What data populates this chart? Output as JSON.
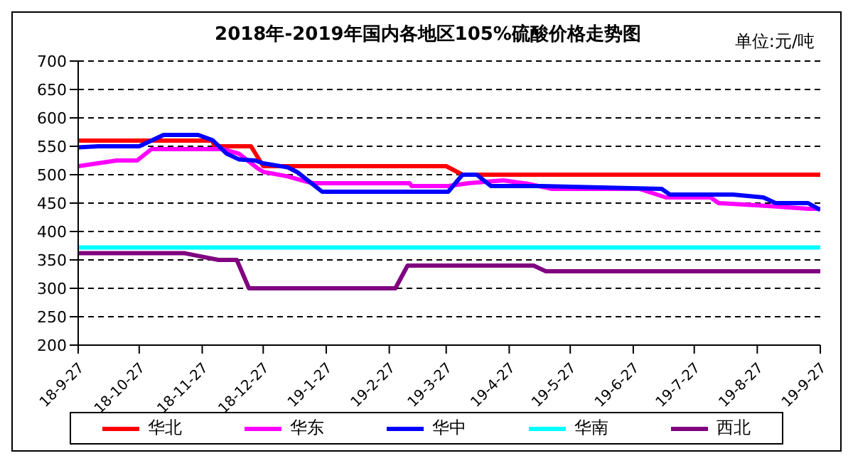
{
  "chart_data": {
    "type": "line",
    "title": "2018年-2019年国内各地区105%硫酸价格走势图",
    "annotations": [
      "单位:元/吨"
    ],
    "xlim": [
      "2018-09-27",
      "2019-09-27"
    ],
    "xticks": [
      {
        "value": "2018-09-27",
        "label": "18-9-27"
      },
      {
        "value": "2018-10-27",
        "label": "18-10-27"
      },
      {
        "value": "2018-11-27",
        "label": "18-11-27"
      },
      {
        "value": "2018-12-27",
        "label": "18-12-27"
      },
      {
        "value": "2019-01-27",
        "label": "19-1-27"
      },
      {
        "value": "2019-02-27",
        "label": "19-2-27"
      },
      {
        "value": "2019-03-27",
        "label": "19-3-27"
      },
      {
        "value": "2019-04-27",
        "label": "19-4-27"
      },
      {
        "value": "2019-05-27",
        "label": "19-5-27"
      },
      {
        "value": "2019-06-27",
        "label": "19-6-27"
      },
      {
        "value": "2019-07-27",
        "label": "19-7-27"
      },
      {
        "value": "2019-08-27",
        "label": "19-8-27"
      },
      {
        "value": "2019-09-27",
        "label": "19-9-27"
      }
    ],
    "ylim": [
      200,
      700
    ],
    "yticks": [
      200,
      250,
      300,
      350,
      400,
      450,
      500,
      550,
      600,
      650,
      700
    ],
    "grid": "y",
    "legend": "bottom",
    "marker": "none",
    "line_style": "solid",
    "series": [
      {
        "name": "华北",
        "color": "#ff0000",
        "x": [
          "2018-09-27",
          "2018-12-02",
          "2018-12-03",
          "2018-12-21",
          "2018-12-27",
          "2019-03-27",
          "2019-04-04",
          "2019-09-27"
        ],
        "values": [
          560,
          560,
          550,
          550,
          515,
          515,
          500,
          500
        ]
      },
      {
        "name": "华东",
        "color": "#ff00ff",
        "x": [
          "2018-09-27",
          "2018-10-16",
          "2018-10-26",
          "2018-11-02",
          "2018-12-07",
          "2018-12-15",
          "2018-12-24",
          "2018-12-27",
          "2019-01-08",
          "2019-01-18",
          "2019-01-21",
          "2019-03-09",
          "2019-03-10",
          "2019-03-28",
          "2019-04-07",
          "2019-04-24",
          "2019-05-06",
          "2019-05-18",
          "2019-06-30",
          "2019-07-13",
          "2019-08-04",
          "2019-08-08",
          "2019-09-01",
          "2019-09-21",
          "2019-09-27"
        ],
        "values": [
          515,
          525,
          525,
          545,
          545,
          537,
          512,
          505,
          497,
          487,
          485,
          485,
          480,
          480,
          485,
          490,
          484,
          475,
          475,
          460,
          460,
          450,
          445,
          440,
          440
        ]
      },
      {
        "name": "华中",
        "color": "#0000ff",
        "x": [
          "2018-09-27",
          "2018-10-07",
          "2018-10-27",
          "2018-11-08",
          "2018-11-25",
          "2018-12-02",
          "2018-12-09",
          "2018-12-15",
          "2018-12-23",
          "2018-12-27",
          "2019-01-08",
          "2019-01-13",
          "2019-01-25",
          "2019-03-28",
          "2019-04-04",
          "2019-04-11",
          "2019-04-18",
          "2019-05-12",
          "2019-07-11",
          "2019-07-15",
          "2019-08-15",
          "2019-08-30",
          "2019-09-05",
          "2019-09-21",
          "2019-09-27"
        ],
        "values": [
          548,
          550,
          550,
          570,
          570,
          561,
          537,
          527,
          525,
          520,
          513,
          504,
          470,
          470,
          500,
          500,
          480,
          480,
          475,
          465,
          465,
          460,
          450,
          450,
          438
        ]
      },
      {
        "name": "华南",
        "color": "#00ffff",
        "x": [
          "2018-09-27",
          "2019-09-27"
        ],
        "values": [
          372,
          372
        ]
      },
      {
        "name": "西北",
        "color": "#800080",
        "x": [
          "2018-09-27",
          "2018-11-18",
          "2018-11-25",
          "2018-12-05",
          "2018-12-14",
          "2018-12-20",
          "2019-03-02",
          "2019-03-08",
          "2019-05-09",
          "2019-05-15",
          "2019-09-27"
        ],
        "values": [
          362,
          362,
          357,
          350,
          350,
          300,
          300,
          340,
          340,
          330,
          330
        ]
      }
    ]
  }
}
